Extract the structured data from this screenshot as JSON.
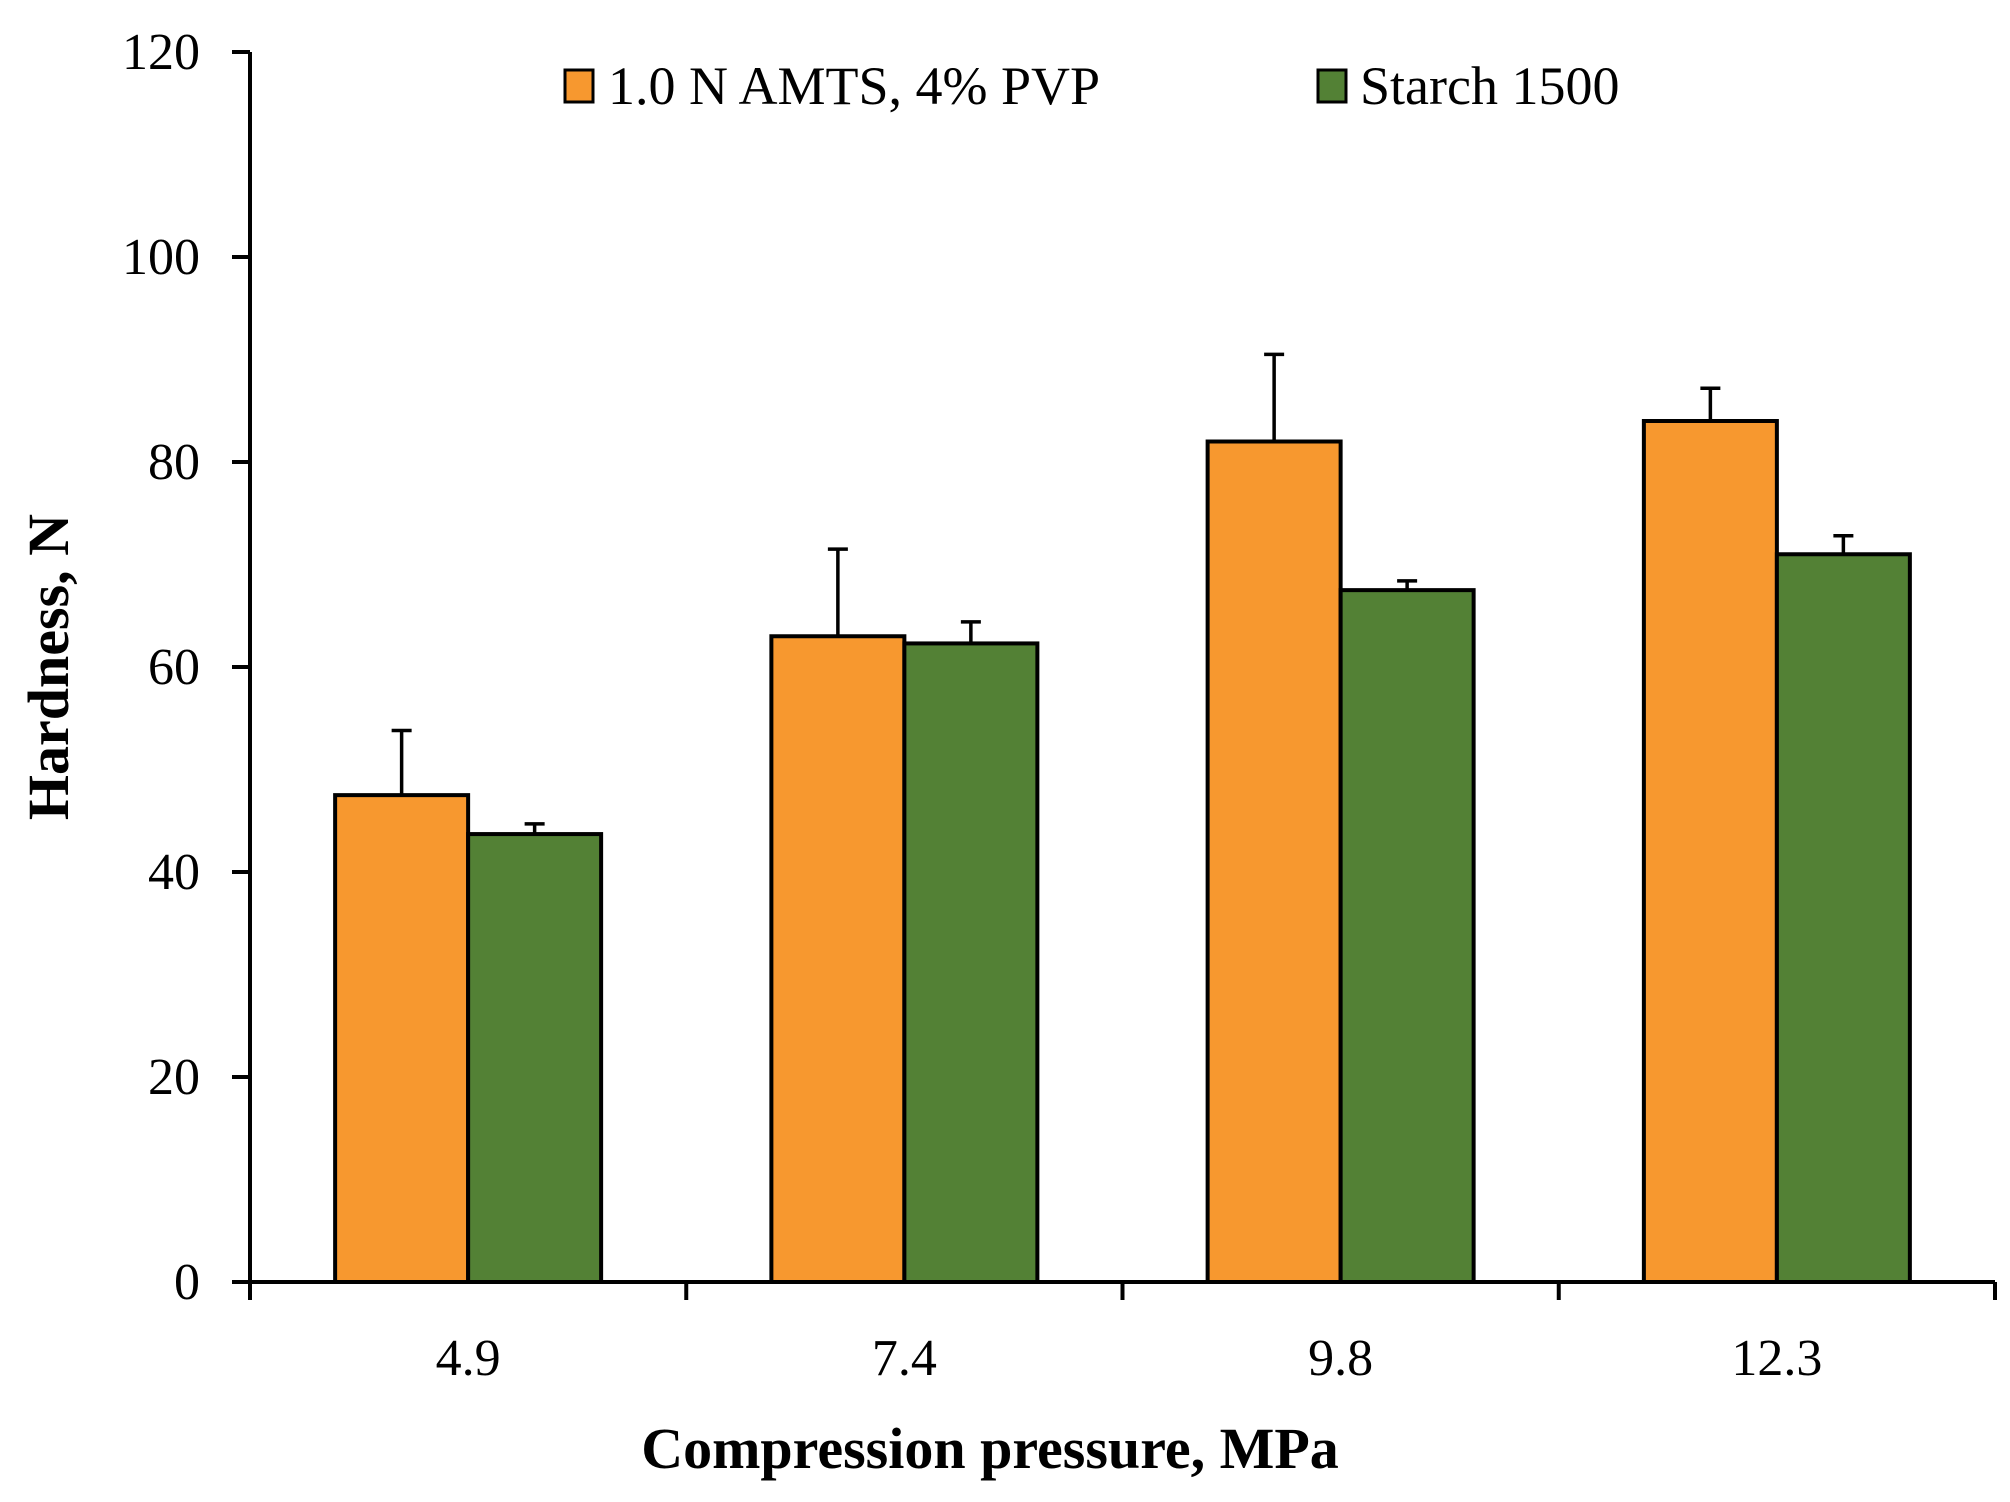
{
  "chart_data": {
    "type": "bar",
    "title": "",
    "xlabel": "Compression pressure, MPa",
    "ylabel": "Hardness, N",
    "categories": [
      "4.9",
      "7.4",
      "9.8",
      "12.3"
    ],
    "ylim": [
      0,
      120
    ],
    "yticks": [
      0,
      20,
      40,
      60,
      80,
      100,
      120
    ],
    "ytick_labels": [
      "0",
      "20",
      "40",
      "60",
      "80",
      "100",
      "120"
    ],
    "grid": false,
    "legend_position": "top-center",
    "series": [
      {
        "name": "1.0 N AMTS, 4% PVP",
        "color": "#f7982f",
        "values": [
          47.5,
          63,
          82,
          84
        ],
        "errors": [
          6.3,
          8.5,
          8.5,
          3.2
        ]
      },
      {
        "name": "Starch 1500",
        "color": "#538135",
        "values": [
          43.7,
          62.3,
          67.5,
          71
        ],
        "errors": [
          1.0,
          2.1,
          0.9,
          1.8
        ]
      }
    ]
  }
}
